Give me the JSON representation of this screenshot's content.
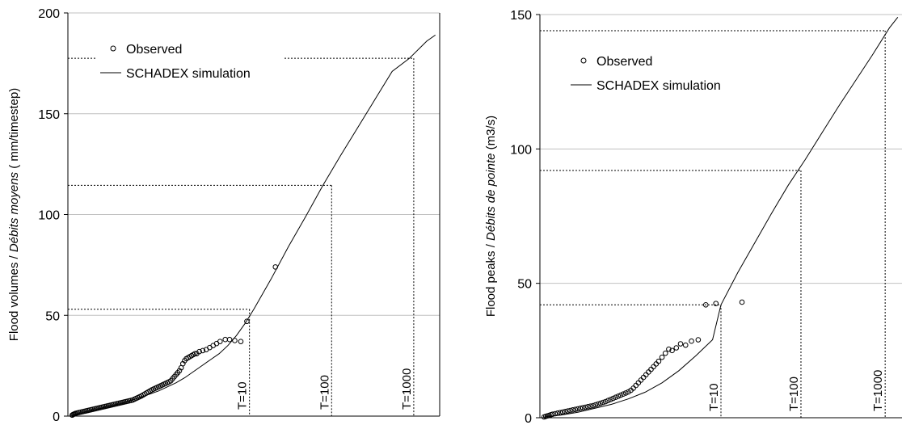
{
  "chart_data": [
    {
      "type": "scatter",
      "ylabel_plain": "Flood volumes / ",
      "ylabel_italic": "Débits moyens",
      "ylabel_unit": "( mm/timestep)",
      "ylim": [
        0,
        200
      ],
      "yticks": [
        "0",
        "50",
        "100",
        "150",
        "200"
      ],
      "ytick_values": [
        0,
        50,
        100,
        150,
        200
      ],
      "grid": true,
      "legend_position": "top-left",
      "series": [
        {
          "name": "Observed",
          "kind": "points",
          "x": [
            0.0,
            0.01,
            0.02,
            0.03,
            0.04,
            0.06,
            0.08,
            0.1,
            0.12,
            0.14,
            0.16,
            0.18,
            0.2,
            0.22,
            0.24,
            0.26,
            0.28,
            0.3,
            0.32,
            0.34,
            0.36,
            0.38,
            0.4,
            0.42,
            0.44,
            0.46,
            0.48,
            0.5,
            0.52,
            0.54,
            0.56,
            0.58,
            0.6,
            0.62,
            0.64,
            0.66,
            0.68,
            0.7,
            0.72,
            0.74,
            0.76,
            0.78,
            0.8,
            0.82,
            0.84,
            0.86,
            0.88,
            0.9,
            0.92,
            0.94,
            0.96,
            0.98,
            1.0,
            1.02,
            1.04,
            1.06,
            1.08,
            1.1,
            1.12,
            1.14,
            1.16,
            1.18,
            1.2,
            1.22,
            1.24,
            1.26,
            1.28,
            1.3,
            1.32,
            1.34,
            1.36,
            1.38,
            1.4,
            1.42,
            1.44,
            1.47,
            1.51,
            1.55,
            1.59,
            1.63,
            1.67,
            1.71,
            1.77,
            1.82,
            1.88,
            1.95,
            2.02,
            2.35
          ],
          "y": [
            0.5,
            0.8,
            1.0,
            1.2,
            1.4,
            1.6,
            1.8,
            2.0,
            2.2,
            2.4,
            2.6,
            2.8,
            3.0,
            3.2,
            3.4,
            3.6,
            3.8,
            4.0,
            4.2,
            4.4,
            4.6,
            4.8,
            5.0,
            5.2,
            5.4,
            5.6,
            5.8,
            6.0,
            6.2,
            6.4,
            6.6,
            6.8,
            7.0,
            7.2,
            7.4,
            7.6,
            7.8,
            8.0,
            8.4,
            8.8,
            9.2,
            9.6,
            10.0,
            10.5,
            11.0,
            11.5,
            12.0,
            12.5,
            13.0,
            13.4,
            13.8,
            14.2,
            14.6,
            15.0,
            15.4,
            15.8,
            16.2,
            16.6,
            17.0,
            17.5,
            18.5,
            19.5,
            20.5,
            21.5,
            22.5,
            24.0,
            26.0,
            27.5,
            28.5,
            29.0,
            29.5,
            30.0,
            30.5,
            31.0,
            31.0,
            32.0,
            32.5,
            33.0,
            34.0,
            35.0,
            36.0,
            37.0,
            38.0,
            38.0,
            37.5,
            37.0,
            47.0,
            74.0
          ]
        },
        {
          "name": "SCHADEX simulation",
          "kind": "line",
          "x": [
            0.0,
            0.1,
            0.2,
            0.3,
            0.4,
            0.5,
            0.6,
            0.7,
            0.8,
            0.9,
            1.0,
            1.1,
            1.2,
            1.3,
            1.4,
            1.5,
            1.6,
            1.7,
            1.8,
            1.9,
            2.0,
            2.1,
            2.3,
            2.5,
            2.7,
            2.9,
            3.1,
            3.3,
            3.5,
            3.7,
            3.9,
            4.1,
            4.2
          ],
          "y": [
            0.5,
            1.5,
            2.5,
            3.5,
            4.5,
            5.5,
            6.5,
            8.0,
            9.5,
            11.0,
            12.5,
            14.5,
            16.5,
            19.0,
            22.0,
            25.0,
            28.0,
            31.0,
            35.0,
            40.0,
            46.0,
            53.0,
            68.0,
            84.0,
            99.0,
            114.5,
            129.0,
            143.0,
            157.0,
            171.0,
            177.5,
            186.0,
            189.0
          ]
        }
      ],
      "return_periods": [
        {
          "label": "T=10",
          "x": 2.05,
          "y": 53
        },
        {
          "label": "T=100",
          "x": 3.0,
          "y": 114.5
        },
        {
          "label": "T=1000",
          "x": 3.95,
          "y": 177.5
        }
      ],
      "xlim": [
        -0.05,
        4.25
      ]
    },
    {
      "type": "scatter",
      "ylabel_plain": "Flood peaks / ",
      "ylabel_italic": "Débits de pointe",
      "ylabel_unit": "(m3/s)",
      "ylim": [
        0,
        150
      ],
      "yticks": [
        "0",
        "50",
        "100",
        "150"
      ],
      "ytick_values": [
        0,
        50,
        100,
        150
      ],
      "grid": true,
      "legend_position": "top-left",
      "series": [
        {
          "name": "Observed",
          "kind": "points",
          "x": [
            0.0,
            0.02,
            0.04,
            0.06,
            0.08,
            0.1,
            0.13,
            0.16,
            0.19,
            0.22,
            0.25,
            0.28,
            0.31,
            0.34,
            0.37,
            0.4,
            0.43,
            0.46,
            0.49,
            0.52,
            0.55,
            0.58,
            0.61,
            0.64,
            0.67,
            0.7,
            0.73,
            0.76,
            0.79,
            0.82,
            0.85,
            0.88,
            0.91,
            0.94,
            0.97,
            1.0,
            1.03,
            1.06,
            1.09,
            1.12,
            1.15,
            1.18,
            1.21,
            1.24,
            1.27,
            1.3,
            1.33,
            1.36,
            1.4,
            1.44,
            1.48,
            1.52,
            1.57,
            1.62,
            1.68,
            1.75,
            1.83,
            1.92,
            2.04,
            2.35
          ],
          "y": [
            0.3,
            0.5,
            0.7,
            0.9,
            1.1,
            1.3,
            1.5,
            1.7,
            1.9,
            2.1,
            2.3,
            2.5,
            2.7,
            2.9,
            3.1,
            3.3,
            3.5,
            3.7,
            3.9,
            4.1,
            4.3,
            4.5,
            4.8,
            5.1,
            5.4,
            5.7,
            6.0,
            6.4,
            6.8,
            7.2,
            7.6,
            8.0,
            8.4,
            8.8,
            9.2,
            9.6,
            10.2,
            11.0,
            12.0,
            13.0,
            14.0,
            15.0,
            16.0,
            17.0,
            18.0,
            19.0,
            20.0,
            21.0,
            22.5,
            24.0,
            25.5,
            25.0,
            26.0,
            27.5,
            27.0,
            28.5,
            29.0,
            42.0,
            42.5,
            43.0
          ]
        },
        {
          "name": "SCHADEX simulation",
          "kind": "line",
          "x": [
            0.0,
            0.2,
            0.4,
            0.6,
            0.8,
            1.0,
            1.2,
            1.4,
            1.6,
            1.8,
            2.0,
            2.1,
            2.3,
            2.5,
            2.7,
            2.9,
            3.1,
            3.3,
            3.5,
            3.7,
            3.9,
            4.1,
            4.2
          ],
          "y": [
            0.3,
            1.0,
            2.0,
            3.5,
            5.0,
            7.0,
            9.5,
            13.0,
            17.5,
            23.0,
            29.0,
            42.0,
            54.0,
            65.0,
            76.0,
            86.5,
            96.0,
            106.0,
            116.0,
            125.5,
            135.0,
            145.0,
            149.0
          ]
        }
      ],
      "return_periods": [
        {
          "label": "T=10",
          "x": 2.1,
          "y": 42
        },
        {
          "label": "T=100",
          "x": 3.05,
          "y": 92
        },
        {
          "label": "T=1000",
          "x": 4.05,
          "y": 144
        }
      ],
      "xlim": [
        -0.05,
        4.25
      ]
    }
  ],
  "legend": {
    "observed_label": "Observed",
    "simulation_label": "SCHADEX simulation"
  }
}
